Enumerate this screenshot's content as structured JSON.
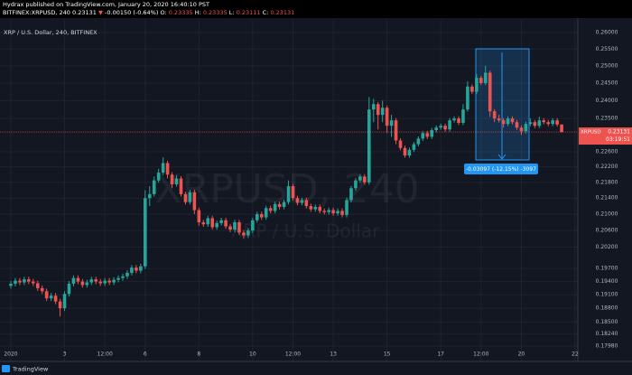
{
  "chart_data": {
    "type": "candlestick",
    "publisher_line": "Hydrax published on TradingView.com, January 20, 2020 16:40:10 PST",
    "symbol_line": "BITFINEX:XRPUSD, 240",
    "change_arrow": "▼",
    "change_label": "-0.00150 (-0.64%)",
    "ohlc_labels": [
      "O:",
      "H:",
      "L:",
      "C:"
    ],
    "legend_title": "XRP / U.S. Dollar, 240, BITFINEX",
    "watermark": "XRPUSD, 240",
    "watermark_subtitle": "XRP / U.S. Dollar",
    "price_tag_symbol": "XRPUSD",
    "countdown": "03:19:51",
    "measure_label": "-0.03097 (-12.15%) -3097",
    "footer_brand": "TradingView",
    "up_color": "#26a69a",
    "down_color": "#ef5350",
    "log_scale": true,
    "grid": true,
    "ylim": [
      0.1766,
      0.2639
    ],
    "yticks": [
      {
        "value": 0.26,
        "label": "0.26000"
      },
      {
        "value": 0.255,
        "label": "0.25500"
      },
      {
        "value": 0.25,
        "label": "0.25000"
      },
      {
        "value": 0.245,
        "label": "0.24500"
      },
      {
        "value": 0.24,
        "label": "0.24000"
      },
      {
        "value": 0.235,
        "label": "0.23500"
      },
      {
        "value": 0.226,
        "label": "0.22600"
      },
      {
        "value": 0.222,
        "label": "0.22200"
      },
      {
        "value": 0.218,
        "label": "0.21800"
      },
      {
        "value": 0.214,
        "label": "0.21400"
      },
      {
        "value": 0.21,
        "label": "0.21000"
      },
      {
        "value": 0.206,
        "label": "0.20600"
      },
      {
        "value": 0.202,
        "label": "0.20200"
      },
      {
        "value": 0.197,
        "label": "0.19700"
      },
      {
        "value": 0.194,
        "label": "0.19400"
      },
      {
        "value": 0.191,
        "label": "0.19100"
      },
      {
        "value": 0.188,
        "label": "0.18800"
      },
      {
        "value": 0.185,
        "label": "0.18500"
      },
      {
        "value": 0.1824,
        "label": "0.18240"
      },
      {
        "value": 0.1798,
        "label": "0.17980"
      }
    ],
    "categories": [
      "2020",
      null,
      null,
      null,
      null,
      null,
      null,
      null,
      null,
      null,
      null,
      null,
      "3",
      null,
      null,
      null,
      null,
      null,
      null,
      null,
      null,
      "12:00",
      null,
      null,
      null,
      null,
      null,
      null,
      null,
      null,
      "6",
      null,
      null,
      null,
      null,
      null,
      null,
      null,
      null,
      null,
      null,
      null,
      "8",
      null,
      null,
      null,
      null,
      null,
      null,
      null,
      null,
      null,
      null,
      null,
      "10",
      null,
      null,
      null,
      null,
      null,
      null,
      null,
      null,
      "12:00",
      null,
      null,
      null,
      null,
      null,
      null,
      null,
      null,
      "13",
      null,
      null,
      null,
      null,
      null,
      null,
      null,
      null,
      null,
      null,
      null,
      "15",
      null,
      null,
      null,
      null,
      null,
      null,
      null,
      null,
      null,
      null,
      null,
      "17",
      null,
      null,
      null,
      null,
      null,
      null,
      null,
      null,
      "12:00",
      null,
      null,
      null,
      null,
      null,
      null,
      null,
      null,
      "20",
      null,
      null,
      null,
      null,
      null,
      null,
      null,
      null,
      null,
      null,
      null,
      "22"
    ],
    "candles": [
      [
        0.193,
        0.1941,
        0.1924,
        0.1935
      ],
      [
        0.1935,
        0.1948,
        0.1929,
        0.1942
      ],
      [
        0.1942,
        0.1948,
        0.1932,
        0.1938
      ],
      [
        0.1938,
        0.1951,
        0.1932,
        0.1945
      ],
      [
        0.1945,
        0.1951,
        0.1934,
        0.194
      ],
      [
        0.194,
        0.1946,
        0.193,
        0.1936
      ],
      [
        0.1936,
        0.1942,
        0.1919,
        0.1925
      ],
      [
        0.1925,
        0.1931,
        0.1912,
        0.1918
      ],
      [
        0.1918,
        0.1924,
        0.1896,
        0.1902
      ],
      [
        0.1902,
        0.1914,
        0.1896,
        0.1908
      ],
      [
        0.1908,
        0.1914,
        0.1889,
        0.1895
      ],
      [
        0.1895,
        0.1901,
        0.1862,
        0.188
      ],
      [
        0.188,
        0.1918,
        0.1874,
        0.1912
      ],
      [
        0.1912,
        0.1941,
        0.1906,
        0.1935
      ],
      [
        0.1935,
        0.1954,
        0.1929,
        0.1948
      ],
      [
        0.1948,
        0.1954,
        0.1934,
        0.194
      ],
      [
        0.194,
        0.1946,
        0.1926,
        0.1932
      ],
      [
        0.1932,
        0.1944,
        0.1926,
        0.1938
      ],
      [
        0.1938,
        0.1951,
        0.1932,
        0.1945
      ],
      [
        0.1945,
        0.1951,
        0.1934,
        0.194
      ],
      [
        0.194,
        0.1946,
        0.193,
        0.1936
      ],
      [
        0.1936,
        0.1948,
        0.193,
        0.1942
      ],
      [
        0.1942,
        0.1948,
        0.1932,
        0.1938
      ],
      [
        0.1938,
        0.195,
        0.1932,
        0.1944
      ],
      [
        0.1944,
        0.1954,
        0.1938,
        0.1948
      ],
      [
        0.1948,
        0.1958,
        0.1942,
        0.1952
      ],
      [
        0.1952,
        0.1966,
        0.1946,
        0.196
      ],
      [
        0.196,
        0.1978,
        0.1954,
        0.1972
      ],
      [
        0.1972,
        0.1978,
        0.1959,
        0.1965
      ],
      [
        0.1965,
        0.1981,
        0.1959,
        0.1975
      ],
      [
        0.1975,
        0.216,
        0.1969,
        0.214
      ],
      [
        0.214,
        0.217,
        0.212,
        0.215
      ],
      [
        0.215,
        0.2195,
        0.2144,
        0.2185
      ],
      [
        0.2185,
        0.2215,
        0.2179,
        0.2205
      ],
      [
        0.2205,
        0.2245,
        0.2199,
        0.223
      ],
      [
        0.223,
        0.2236,
        0.219,
        0.22
      ],
      [
        0.22,
        0.2206,
        0.2165,
        0.2175
      ],
      [
        0.2175,
        0.2198,
        0.2169,
        0.219
      ],
      [
        0.219,
        0.2196,
        0.2144,
        0.215
      ],
      [
        0.215,
        0.2156,
        0.2124,
        0.213
      ],
      [
        0.213,
        0.2161,
        0.2124,
        0.2155
      ],
      [
        0.2155,
        0.2161,
        0.21,
        0.211
      ],
      [
        0.211,
        0.2116,
        0.2072,
        0.208
      ],
      [
        0.208,
        0.2086,
        0.2069,
        0.2075
      ],
      [
        0.2075,
        0.2096,
        0.2069,
        0.209
      ],
      [
        0.209,
        0.2096,
        0.2062,
        0.2068
      ],
      [
        0.2068,
        0.2084,
        0.2062,
        0.2078
      ],
      [
        0.2078,
        0.2091,
        0.2072,
        0.2085
      ],
      [
        0.2085,
        0.2091,
        0.2064,
        0.207
      ],
      [
        0.207,
        0.2076,
        0.2056,
        0.2062
      ],
      [
        0.2062,
        0.2086,
        0.2056,
        0.208
      ],
      [
        0.208,
        0.2086,
        0.2049,
        0.2055
      ],
      [
        0.2055,
        0.2061,
        0.204,
        0.2048
      ],
      [
        0.2048,
        0.2066,
        0.2042,
        0.206
      ],
      [
        0.206,
        0.2091,
        0.2054,
        0.2085
      ],
      [
        0.2085,
        0.2106,
        0.2079,
        0.21
      ],
      [
        0.21,
        0.2106,
        0.2086,
        0.2092
      ],
      [
        0.2092,
        0.2121,
        0.2086,
        0.2115
      ],
      [
        0.2115,
        0.2121,
        0.2102,
        0.2108
      ],
      [
        0.2108,
        0.2131,
        0.2102,
        0.2125
      ],
      [
        0.2125,
        0.2131,
        0.2112,
        0.2118
      ],
      [
        0.2118,
        0.2136,
        0.2112,
        0.213
      ],
      [
        0.213,
        0.2185,
        0.2124,
        0.217
      ],
      [
        0.217,
        0.2176,
        0.2134,
        0.214
      ],
      [
        0.214,
        0.2146,
        0.2122,
        0.2128
      ],
      [
        0.2128,
        0.2141,
        0.2122,
        0.2135
      ],
      [
        0.2135,
        0.2141,
        0.2114,
        0.212
      ],
      [
        0.212,
        0.2126,
        0.2106,
        0.2112
      ],
      [
        0.2112,
        0.2124,
        0.2106,
        0.2118
      ],
      [
        0.2118,
        0.2124,
        0.2102,
        0.2108
      ],
      [
        0.2108,
        0.2114,
        0.2099,
        0.2105
      ],
      [
        0.2105,
        0.2116,
        0.2099,
        0.211
      ],
      [
        0.211,
        0.2116,
        0.2096,
        0.2102
      ],
      [
        0.2102,
        0.2114,
        0.2096,
        0.2108
      ],
      [
        0.2108,
        0.2114,
        0.2092,
        0.2098
      ],
      [
        0.2098,
        0.2141,
        0.2092,
        0.2135
      ],
      [
        0.2135,
        0.2171,
        0.2129,
        0.2165
      ],
      [
        0.2165,
        0.2191,
        0.2159,
        0.2185
      ],
      [
        0.2185,
        0.2201,
        0.2179,
        0.2195
      ],
      [
        0.2195,
        0.2201,
        0.2174,
        0.218
      ],
      [
        0.218,
        0.241,
        0.2174,
        0.2375
      ],
      [
        0.2375,
        0.2405,
        0.234,
        0.239
      ],
      [
        0.239,
        0.2396,
        0.232,
        0.236
      ],
      [
        0.236,
        0.24,
        0.234,
        0.238
      ],
      [
        0.238,
        0.2386,
        0.231,
        0.233
      ],
      [
        0.233,
        0.236,
        0.23,
        0.2345
      ],
      [
        0.2345,
        0.2351,
        0.228,
        0.229
      ],
      [
        0.229,
        0.2296,
        0.2264,
        0.227
      ],
      [
        0.227,
        0.2276,
        0.2244,
        0.225
      ],
      [
        0.225,
        0.2271,
        0.2244,
        0.2265
      ],
      [
        0.2265,
        0.2286,
        0.2259,
        0.228
      ],
      [
        0.228,
        0.2301,
        0.2274,
        0.2295
      ],
      [
        0.2295,
        0.2316,
        0.2289,
        0.231
      ],
      [
        0.231,
        0.2316,
        0.2294,
        0.23
      ],
      [
        0.23,
        0.2324,
        0.2294,
        0.2318
      ],
      [
        0.2318,
        0.2331,
        0.2312,
        0.2325
      ],
      [
        0.2325,
        0.2336,
        0.2319,
        0.233
      ],
      [
        0.233,
        0.2336,
        0.2314,
        0.232
      ],
      [
        0.232,
        0.2351,
        0.2314,
        0.2345
      ],
      [
        0.2345,
        0.2356,
        0.2339,
        0.235
      ],
      [
        0.235,
        0.2356,
        0.2332,
        0.2338
      ],
      [
        0.2338,
        0.239,
        0.2332,
        0.2375
      ],
      [
        0.2375,
        0.2455,
        0.2369,
        0.244
      ],
      [
        0.244,
        0.2446,
        0.2419,
        0.2425
      ],
      [
        0.2425,
        0.2475,
        0.2419,
        0.2465
      ],
      [
        0.2465,
        0.2471,
        0.2444,
        0.245
      ],
      [
        0.245,
        0.25,
        0.2444,
        0.248
      ],
      [
        0.248,
        0.2486,
        0.2355,
        0.237
      ],
      [
        0.237,
        0.2376,
        0.234,
        0.235
      ],
      [
        0.235,
        0.236,
        0.2339,
        0.2345
      ],
      [
        0.2345,
        0.2351,
        0.2325,
        0.2335
      ],
      [
        0.2335,
        0.2356,
        0.2329,
        0.235
      ],
      [
        0.235,
        0.2356,
        0.2334,
        0.234
      ],
      [
        0.234,
        0.2346,
        0.2319,
        0.2325
      ],
      [
        0.2325,
        0.2331,
        0.2305,
        0.2315
      ],
      [
        0.2315,
        0.2341,
        0.2309,
        0.2335
      ],
      [
        0.2335,
        0.235,
        0.2329,
        0.234
      ],
      [
        0.234,
        0.2346,
        0.2324,
        0.233
      ],
      [
        0.233,
        0.2355,
        0.2324,
        0.2345
      ],
      [
        0.2345,
        0.2351,
        0.2334,
        0.234
      ],
      [
        0.234,
        0.2346,
        0.2329,
        0.2335
      ],
      [
        0.2335,
        0.2351,
        0.2329,
        0.2345
      ],
      [
        0.2345,
        0.2351,
        0.2328,
        0.23335
      ],
      [
        0.23335,
        0.23335,
        0.23111,
        0.23131
      ],
      null,
      null,
      null
    ]
  }
}
